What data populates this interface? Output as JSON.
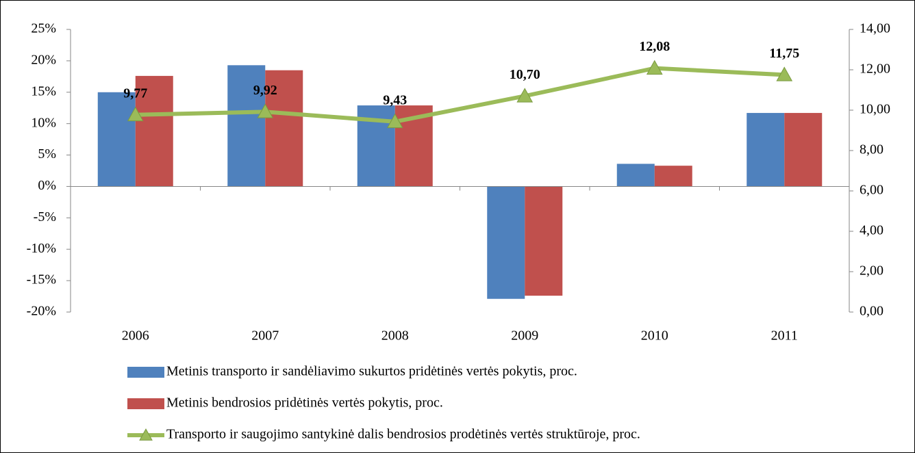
{
  "chart_data": {
    "type": "bar",
    "categories": [
      "2006",
      "2007",
      "2008",
      "2009",
      "2010",
      "2011"
    ],
    "series": [
      {
        "name": "Metinis transporto ir sandėliavimo sukurtos pridėtinės vertės pokytis, proc.",
        "color": "#4f81bd",
        "type": "bar",
        "values": [
          15.0,
          19.3,
          12.9,
          -17.9,
          3.6,
          11.7
        ]
      },
      {
        "name": "Metinis bendrosios pridėtinės vertės pokytis, proc.",
        "color": "#c0504d",
        "type": "bar",
        "values": [
          17.6,
          18.5,
          12.9,
          -17.4,
          3.3,
          11.7
        ]
      },
      {
        "name": "Transporto ir saugojimo  santykinė dalis bendrosios prodėtinės vertės struktūroje, proc.",
        "color": "#9bbb59",
        "type": "line",
        "axis": "y2",
        "values": [
          9.77,
          9.92,
          9.43,
          10.7,
          12.08,
          11.75
        ],
        "value_labels": [
          "9,77",
          "9,92",
          "9,43",
          "10,70",
          "12,08",
          "11,75"
        ]
      }
    ],
    "ylim": [
      -20,
      25
    ],
    "yticks": [
      {
        "value": -20,
        "label": "-20%"
      },
      {
        "value": -15,
        "label": "-15%"
      },
      {
        "value": -10,
        "label": "-10%"
      },
      {
        "value": -5,
        "label": "-5%"
      },
      {
        "value": 0,
        "label": "0%"
      },
      {
        "value": 5,
        "label": "5%"
      },
      {
        "value": 10,
        "label": "10%"
      },
      {
        "value": 15,
        "label": "15%"
      },
      {
        "value": 20,
        "label": "20%"
      },
      {
        "value": 25,
        "label": "25%"
      }
    ],
    "y2lim": [
      0,
      14
    ],
    "y2ticks": [
      {
        "value": 0,
        "label": "0,00"
      },
      {
        "value": 2,
        "label": "2,00"
      },
      {
        "value": 4,
        "label": "4,00"
      },
      {
        "value": 6,
        "label": "6,00"
      },
      {
        "value": 8,
        "label": "8,00"
      },
      {
        "value": 10,
        "label": "10,00"
      },
      {
        "value": 12,
        "label": "12,00"
      },
      {
        "value": 14,
        "label": "14,00"
      }
    ],
    "legend": "bottom"
  }
}
